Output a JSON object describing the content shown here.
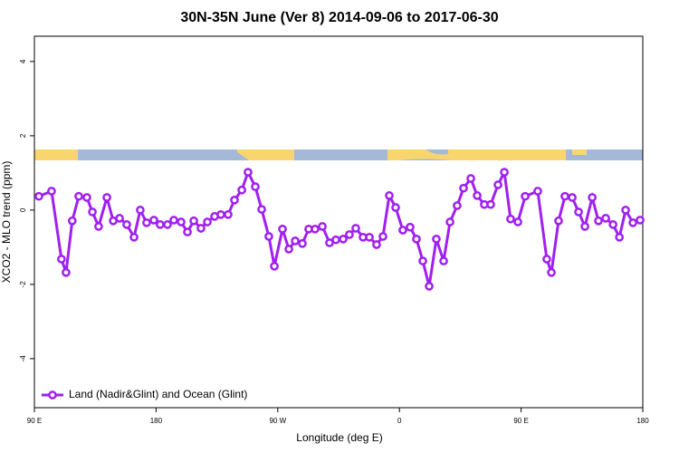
{
  "chart_data": {
    "type": "line",
    "title": "30N-35N June (Ver 8)   2014-09-06 to 2017-06-30",
    "x_label": "Longitude (deg E)",
    "y_label": "XCO2 - MLO trend (ppm)",
    "xlim": [
      90,
      540
    ],
    "ylim": [
      -5.32,
      4.68
    ],
    "xticks": [
      {
        "value": 90,
        "label": "90 E"
      },
      180,
      {
        "value": 270,
        "label": "90 W"
      },
      {
        "value": 360,
        "label": "0"
      },
      {
        "value": 450,
        "label": "90 E"
      },
      {
        "value": 540,
        "label": "180"
      }
    ],
    "yticks": [
      -4,
      -2,
      0,
      2,
      4
    ],
    "legend": "bottomleft",
    "grid": false,
    "x": [
      93.3,
      102.7,
      110,
      113.4,
      118,
      122.8,
      128.8,
      132.9,
      137.5,
      143.6,
      148.3,
      153,
      158.3,
      163.7,
      168.3,
      173,
      178.4,
      183,
      188.4,
      193.1,
      198.5,
      203.2,
      207.9,
      213.2,
      217.9,
      223.3,
      227.9,
      233.3,
      238,
      243.4,
      248,
      253.4,
      258.1,
      263.4,
      267.5,
      273.5,
      278.2,
      282.9,
      288.2,
      292.9,
      297.6,
      303,
      308.3,
      313,
      318.4,
      323,
      327.7,
      333.1,
      337.8,
      343.1,
      347.8,
      352.5,
      357.2,
      362.5,
      367.9,
      372.6,
      377.3,
      382,
      387.3,
      392.7,
      397.4,
      402.7,
      407.4,
      412.8,
      417.5,
      422.8,
      427.5,
      432.9,
      437.6,
      442.2,
      447.6,
      453,
      462.3,
      469,
      472.4,
      477.7,
      482.4,
      487.8,
      492.5,
      497.2,
      502.6,
      507.2,
      512.6,
      518,
      522.7,
      527.3,
      532.7,
      538
    ],
    "series": [
      {
        "name": "Land (Nadir&Glint) and Ocean (Glint)",
        "color": "#a020f0",
        "values": [
          0.37,
          0.51,
          -1.32,
          -1.68,
          -0.29,
          0.37,
          0.34,
          -0.05,
          -0.44,
          0.34,
          -0.29,
          -0.22,
          -0.39,
          -0.73,
          0.0,
          -0.34,
          -0.27,
          -0.39,
          -0.39,
          -0.27,
          -0.32,
          -0.59,
          -0.29,
          -0.49,
          -0.32,
          -0.17,
          -0.12,
          -0.12,
          0.27,
          0.54,
          1.02,
          0.63,
          0.02,
          -0.71,
          -1.51,
          -0.51,
          -1.05,
          -0.83,
          -0.9,
          -0.51,
          -0.51,
          -0.44,
          -0.88,
          -0.8,
          -0.78,
          -0.66,
          -0.49,
          -0.73,
          -0.73,
          -0.93,
          -0.71,
          0.39,
          0.07,
          -0.54,
          -0.46,
          -0.78,
          -1.37,
          -2.05,
          -0.78,
          -1.37,
          -0.32,
          0.12,
          0.59,
          0.85,
          0.39,
          0.15,
          0.15,
          0.68,
          1.02,
          -0.24,
          -0.32,
          0.37,
          0.51,
          -1.32,
          -1.68,
          -0.29,
          0.37,
          0.34,
          -0.05,
          -0.44,
          0.34,
          -0.29,
          -0.22,
          -0.39,
          -0.73,
          0.0,
          -0.34,
          -0.27
        ]
      }
    ]
  }
}
